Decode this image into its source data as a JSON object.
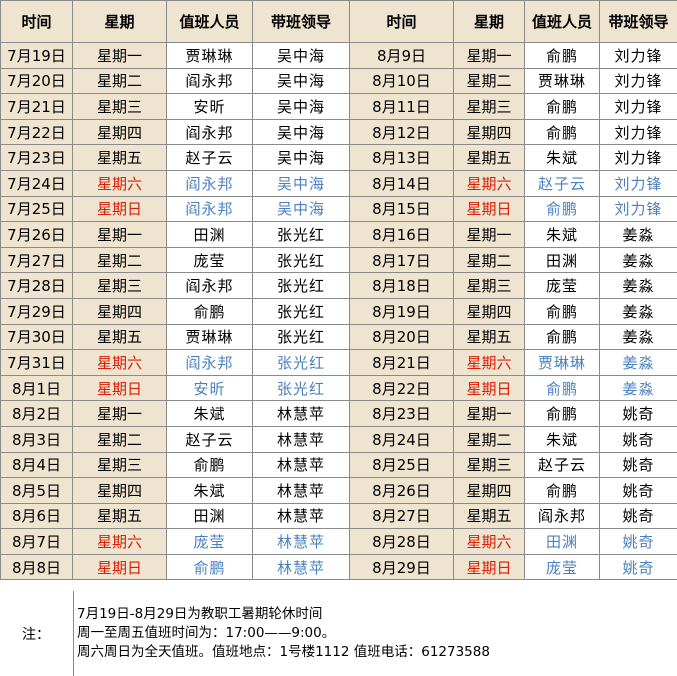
{
  "headers": [
    "时间",
    "星期",
    "值班人员",
    "带班领导",
    "时间",
    "星期",
    "值班人员",
    "带班领导"
  ],
  "rows": [
    [
      {
        "date": "7月19日",
        "weekday": "星期一",
        "staff": "贾琳琳",
        "leader": "吴中海"
      },
      {
        "date": "8月9日",
        "weekday": "星期一",
        "staff": "俞鹏",
        "leader": "刘力锋"
      }
    ],
    [
      {
        "date": "7月20日",
        "weekday": "星期二",
        "staff": "阎永邦",
        "leader": "吴中海"
      },
      {
        "date": "8月10日",
        "weekday": "星期二",
        "staff": "贾琳琳",
        "leader": "刘力锋"
      }
    ],
    [
      {
        "date": "7月21日",
        "weekday": "星期三",
        "staff": "安昕",
        "leader": "吴中海"
      },
      {
        "date": "8月11日",
        "weekday": "星期三",
        "staff": "俞鹏",
        "leader": "刘力锋"
      }
    ],
    [
      {
        "date": "7月22日",
        "weekday": "星期四",
        "staff": "阎永邦",
        "leader": "吴中海"
      },
      {
        "date": "8月12日",
        "weekday": "星期四",
        "staff": "俞鹏",
        "leader": "刘力锋"
      }
    ],
    [
      {
        "date": "7月23日",
        "weekday": "星期五",
        "staff": "赵子云",
        "leader": "吴中海"
      },
      {
        "date": "8月13日",
        "weekday": "星期五",
        "staff": "朱斌",
        "leader": "刘力锋"
      }
    ],
    [
      {
        "date": "7月24日",
        "weekday": "星期六",
        "staff": "阎永邦",
        "leader": "吴中海",
        "weekend": true
      },
      {
        "date": "8月14日",
        "weekday": "星期六",
        "staff": "赵子云",
        "leader": "刘力锋",
        "weekend": true
      }
    ],
    [
      {
        "date": "7月25日",
        "weekday": "星期日",
        "staff": "阎永邦",
        "leader": "吴中海",
        "weekend": true
      },
      {
        "date": "8月15日",
        "weekday": "星期日",
        "staff": "俞鹏",
        "leader": "刘力锋",
        "weekend": true
      }
    ],
    [
      {
        "date": "7月26日",
        "weekday": "星期一",
        "staff": "田渊",
        "leader": "张光红"
      },
      {
        "date": "8月16日",
        "weekday": "星期一",
        "staff": "朱斌",
        "leader": "姜淼"
      }
    ],
    [
      {
        "date": "7月27日",
        "weekday": "星期二",
        "staff": "庞莹",
        "leader": "张光红"
      },
      {
        "date": "8月17日",
        "weekday": "星期二",
        "staff": "田渊",
        "leader": "姜淼"
      }
    ],
    [
      {
        "date": "7月28日",
        "weekday": "星期三",
        "staff": "阎永邦",
        "leader": "张光红"
      },
      {
        "date": "8月18日",
        "weekday": "星期三",
        "staff": "庞莹",
        "leader": "姜淼"
      }
    ],
    [
      {
        "date": "7月29日",
        "weekday": "星期四",
        "staff": "俞鹏",
        "leader": "张光红"
      },
      {
        "date": "8月19日",
        "weekday": "星期四",
        "staff": "俞鹏",
        "leader": "姜淼"
      }
    ],
    [
      {
        "date": "7月30日",
        "weekday": "星期五",
        "staff": "贾琳琳",
        "leader": "张光红"
      },
      {
        "date": "8月20日",
        "weekday": "星期五",
        "staff": "俞鹏",
        "leader": "姜淼"
      }
    ],
    [
      {
        "date": "7月31日",
        "weekday": "星期六",
        "staff": "阎永邦",
        "leader": "张光红",
        "weekend": true
      },
      {
        "date": "8月21日",
        "weekday": "星期六",
        "staff": "贾琳琳",
        "leader": "姜淼",
        "weekend": true
      }
    ],
    [
      {
        "date": "8月1日",
        "weekday": "星期日",
        "staff": "安昕",
        "leader": "张光红",
        "weekend": true
      },
      {
        "date": "8月22日",
        "weekday": "星期日",
        "staff": "俞鹏",
        "leader": "姜淼",
        "weekend": true
      }
    ],
    [
      {
        "date": "8月2日",
        "weekday": "星期一",
        "staff": "朱斌",
        "leader": "林慧苹"
      },
      {
        "date": "8月23日",
        "weekday": "星期一",
        "staff": "俞鹏",
        "leader": "姚奇"
      }
    ],
    [
      {
        "date": "8月3日",
        "weekday": "星期二",
        "staff": "赵子云",
        "leader": "林慧苹"
      },
      {
        "date": "8月24日",
        "weekday": "星期二",
        "staff": "朱斌",
        "leader": "姚奇"
      }
    ],
    [
      {
        "date": "8月4日",
        "weekday": "星期三",
        "staff": "俞鹏",
        "leader": "林慧苹"
      },
      {
        "date": "8月25日",
        "weekday": "星期三",
        "staff": "赵子云",
        "leader": "姚奇"
      }
    ],
    [
      {
        "date": "8月5日",
        "weekday": "星期四",
        "staff": "朱斌",
        "leader": "林慧苹"
      },
      {
        "date": "8月26日",
        "weekday": "星期四",
        "staff": "俞鹏",
        "leader": "姚奇"
      }
    ],
    [
      {
        "date": "8月6日",
        "weekday": "星期五",
        "staff": "田渊",
        "leader": "林慧苹"
      },
      {
        "date": "8月27日",
        "weekday": "星期五",
        "staff": "阎永邦",
        "leader": "姚奇"
      }
    ],
    [
      {
        "date": "8月7日",
        "weekday": "星期六",
        "staff": "庞莹",
        "leader": "林慧苹",
        "weekend": true
      },
      {
        "date": "8月28日",
        "weekday": "星期六",
        "staff": "田渊",
        "leader": "姚奇",
        "weekend": true
      }
    ],
    [
      {
        "date": "8月8日",
        "weekday": "星期日",
        "staff": "俞鹏",
        "leader": "林慧苹",
        "weekend": true
      },
      {
        "date": "8月29日",
        "weekday": "星期日",
        "staff": "庞莹",
        "leader": "姚奇",
        "weekend": true
      }
    ]
  ],
  "notes": {
    "label": "注：",
    "lines": [
      "7月19日-8月29日为教职工暑期轮休时间",
      "周一至周五值班时间为：17:00——9:00。",
      "周六周日为全天值班。值班地点：1号楼1112  值班电话：61273588"
    ]
  },
  "colors": {
    "header_bg": "#efe4cf",
    "weekend_day": "#d81e06",
    "weekend_person": "#4a80c0",
    "grid": "#8a8a8a"
  }
}
